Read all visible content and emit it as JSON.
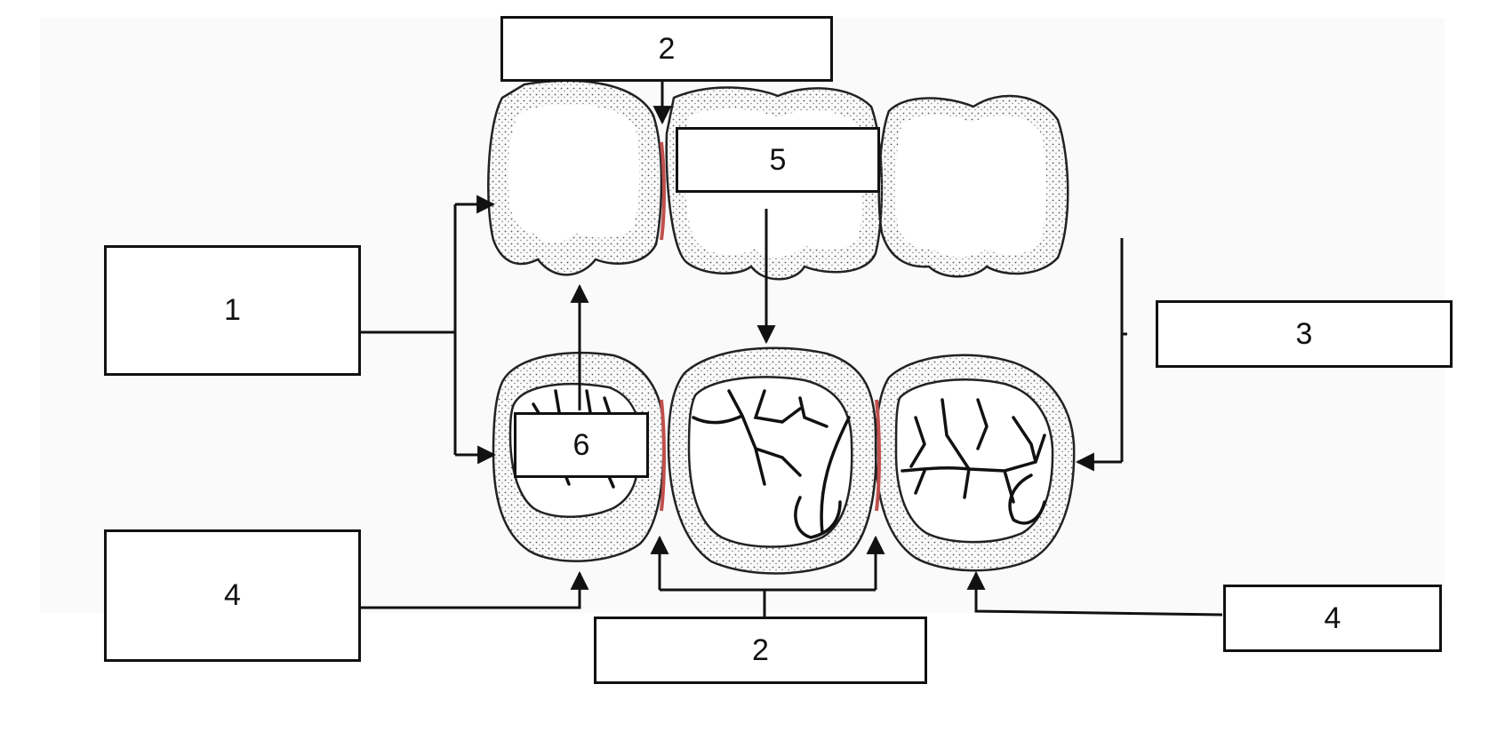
{
  "labels": {
    "top_contact": "2",
    "upper_middle": "5",
    "left_group": "1",
    "right_group": "3",
    "lower_left": "4",
    "lower_right": "4",
    "lower_contact": "2",
    "lower_premolar": "6"
  },
  "colors": {
    "line": "#111111",
    "contact_area": "#c0504d",
    "background": "#ffffff",
    "stipple": "#555555"
  }
}
